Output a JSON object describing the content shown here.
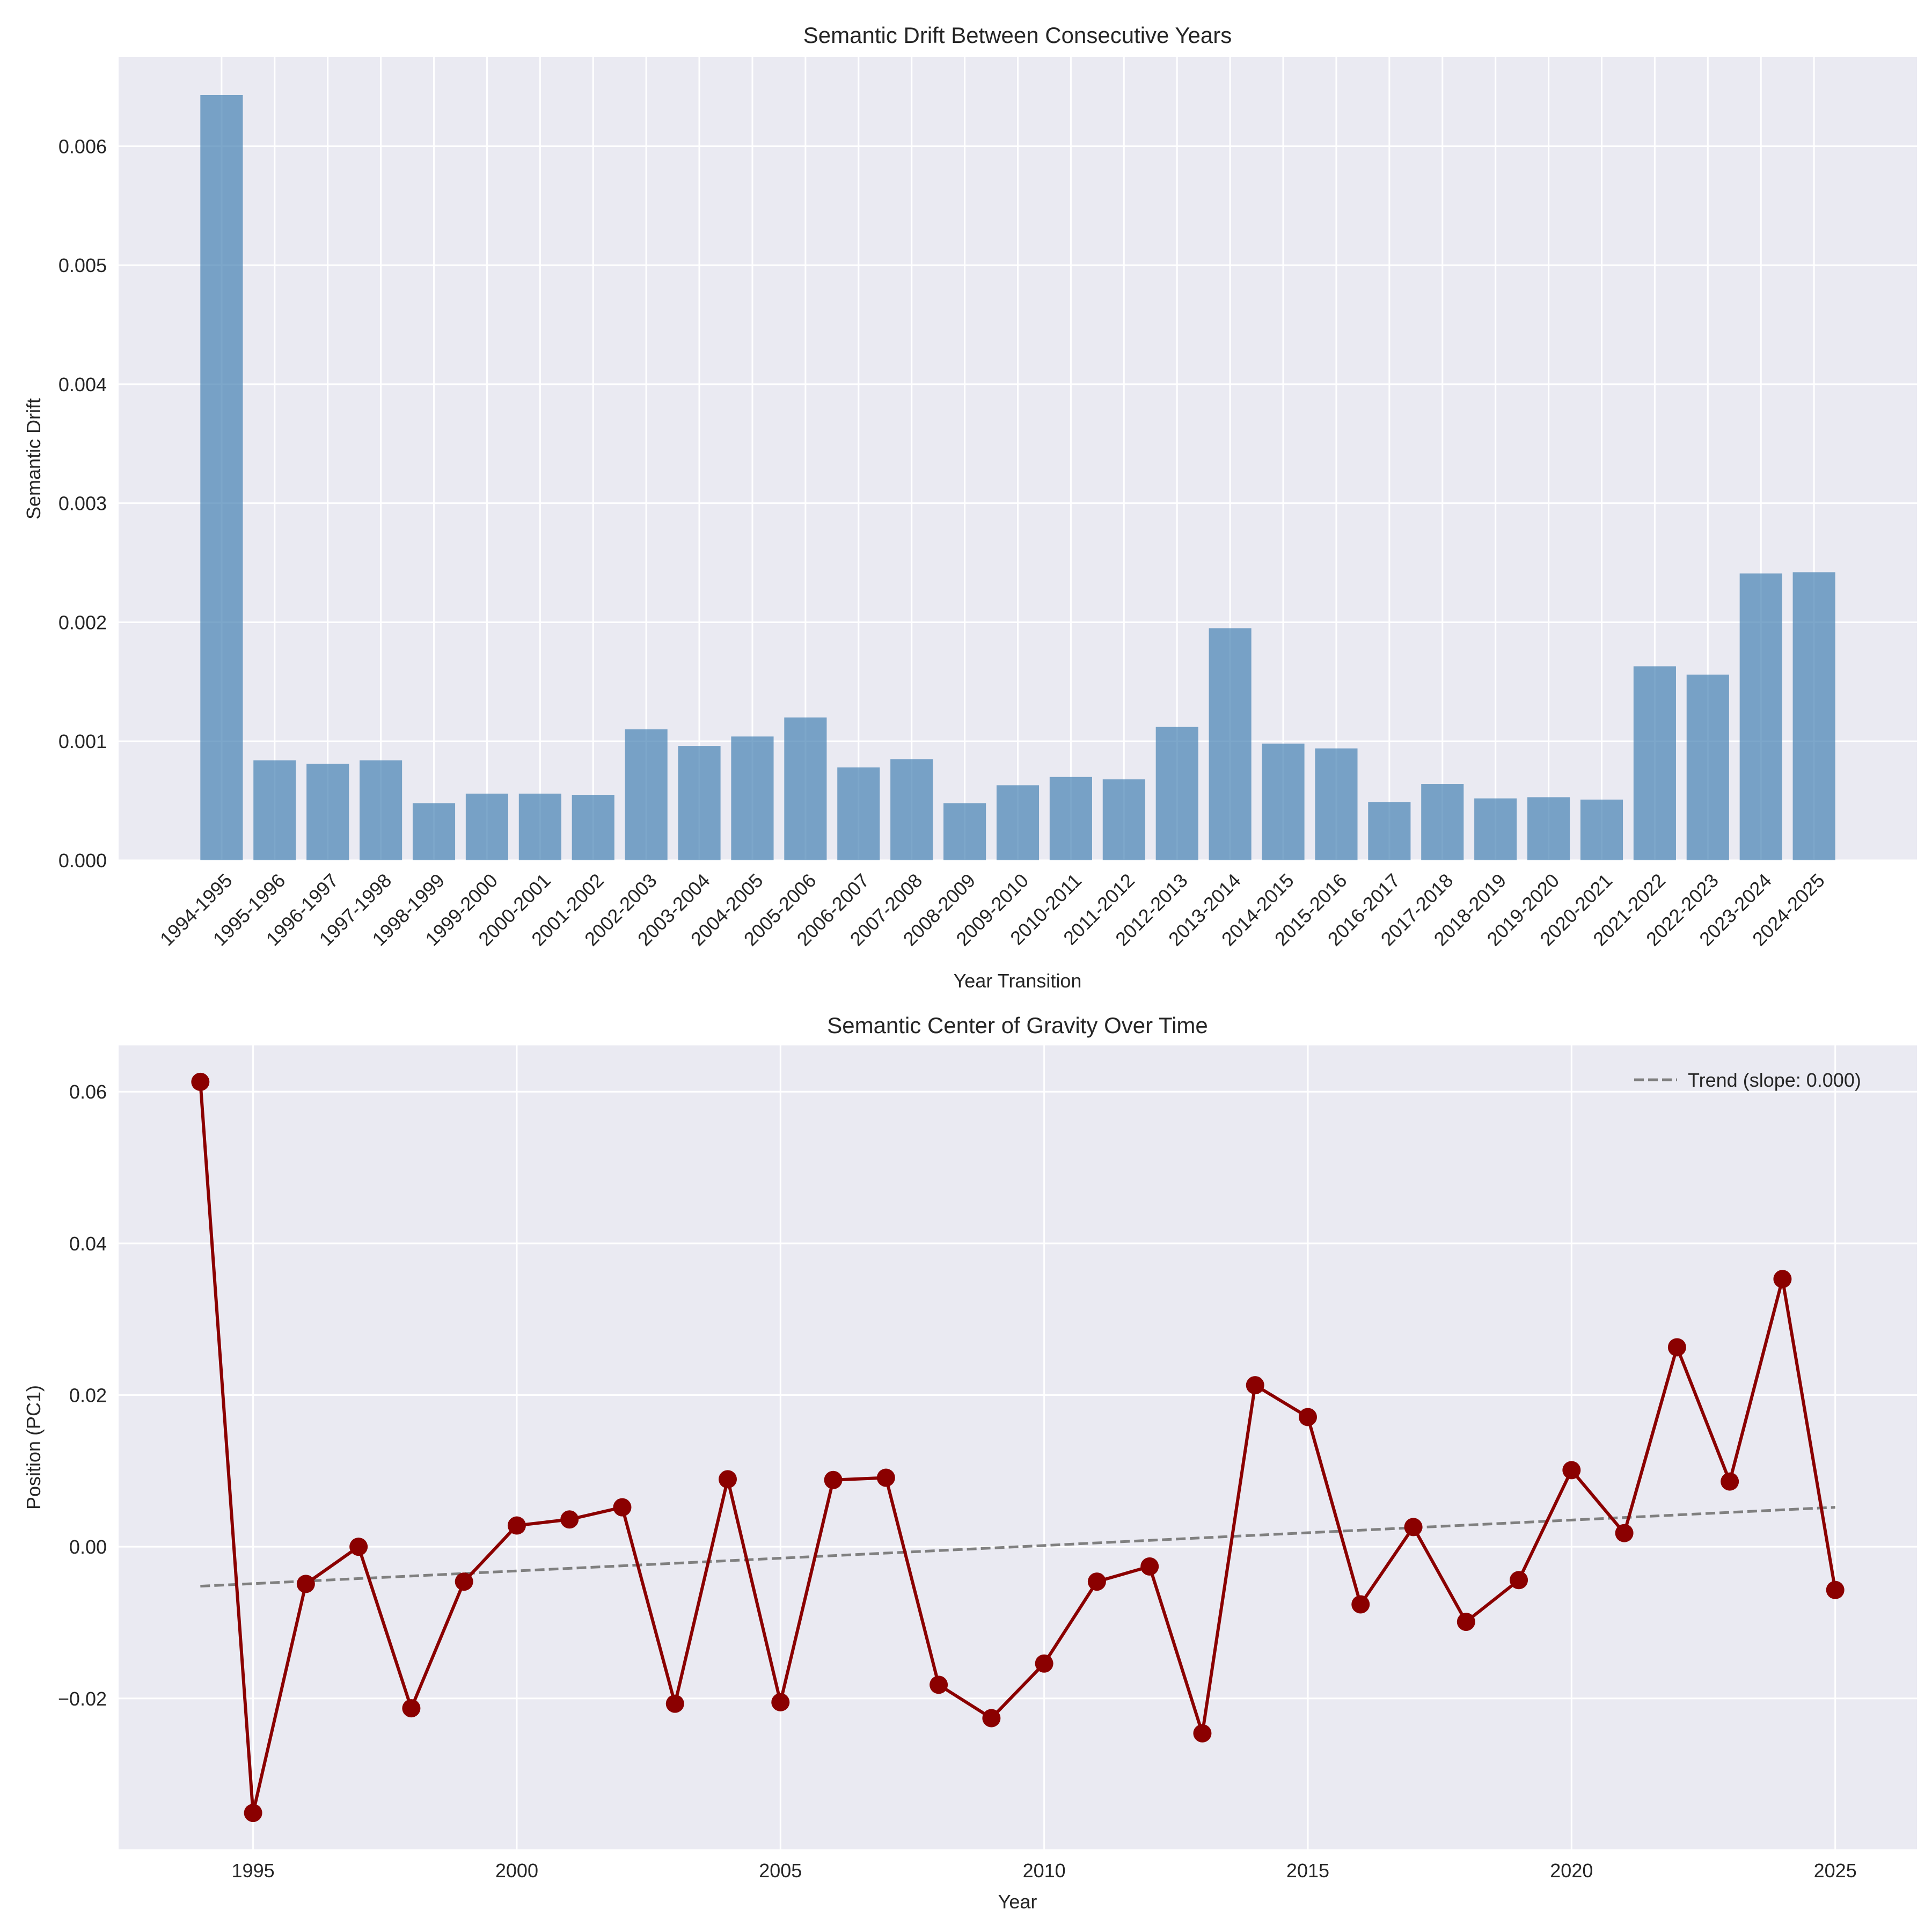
{
  "colors": {
    "background": "#eaeaf2",
    "grid": "#ffffff",
    "bar": "#4682b4",
    "line": "#8b0000",
    "trend": "#808080",
    "text": "#262626"
  },
  "chart_data": [
    {
      "type": "bar",
      "title": "Semantic Drift Between Consecutive Years",
      "xlabel": "Year Transition",
      "ylabel": "Semantic Drift",
      "ylim": [
        0,
        0.00675
      ],
      "yticks": [
        "0.000",
        "0.001",
        "0.002",
        "0.003",
        "0.004",
        "0.005",
        "0.006"
      ],
      "grid": true,
      "categories": [
        "1994-1995",
        "1995-1996",
        "1996-1997",
        "1997-1998",
        "1998-1999",
        "1999-2000",
        "2000-2001",
        "2001-2002",
        "2002-2003",
        "2003-2004",
        "2004-2005",
        "2005-2006",
        "2006-2007",
        "2007-2008",
        "2008-2009",
        "2009-2010",
        "2010-2011",
        "2011-2012",
        "2012-2013",
        "2013-2014",
        "2014-2015",
        "2015-2016",
        "2016-2017",
        "2017-2018",
        "2018-2019",
        "2019-2020",
        "2020-2021",
        "2021-2022",
        "2022-2023",
        "2023-2024",
        "2024-2025"
      ],
      "values": [
        0.00643,
        0.00084,
        0.00081,
        0.00084,
        0.00048,
        0.00056,
        0.00056,
        0.00055,
        0.0011,
        0.00096,
        0.00104,
        0.0012,
        0.00078,
        0.00085,
        0.00048,
        0.00063,
        0.0007,
        0.00068,
        0.00112,
        0.00195,
        0.00098,
        0.00094,
        0.00049,
        0.00064,
        0.00052,
        0.00053,
        0.00051,
        0.00163,
        0.00156,
        0.00241,
        0.00242
      ]
    },
    {
      "type": "line",
      "title": "Semantic Center of Gravity Over Time",
      "xlabel": "Year",
      "ylabel": "Position (PC1)",
      "xlim": [
        1992.45,
        2026.55
      ],
      "ylim": [
        -0.0399,
        0.0661
      ],
      "xticks": [
        "1995",
        "2000",
        "2005",
        "2010",
        "2015",
        "2020",
        "2025"
      ],
      "yticks": [
        "−0.02",
        "0.00",
        "0.02",
        "0.04",
        "0.06"
      ],
      "grid": true,
      "legend": "top-right",
      "x": [
        1994,
        1995,
        1996,
        1997,
        1998,
        1999,
        2000,
        2001,
        2002,
        2003,
        2004,
        2005,
        2006,
        2007,
        2008,
        2009,
        2010,
        2011,
        2012,
        2013,
        2014,
        2015,
        2016,
        2017,
        2018,
        2019,
        2020,
        2021,
        2022,
        2023,
        2024,
        2025
      ],
      "y": [
        0.0613,
        -0.0351,
        -0.0049,
        0.0,
        -0.0213,
        -0.0046,
        0.0028,
        0.0036,
        0.0052,
        -0.0207,
        0.0089,
        -0.0205,
        0.0088,
        0.0091,
        -0.0182,
        -0.0226,
        -0.0154,
        -0.0046,
        -0.0026,
        -0.0246,
        0.0213,
        0.0171,
        -0.0076,
        0.0026,
        -0.0099,
        -0.0044,
        0.0101,
        0.0018,
        0.0263,
        0.0086,
        0.0353,
        -0.0057
      ],
      "trend": {
        "name": "Trend (slope: 0.000)",
        "start": [
          1994,
          -0.0052
        ],
        "end": [
          2025,
          0.0052
        ]
      }
    }
  ]
}
